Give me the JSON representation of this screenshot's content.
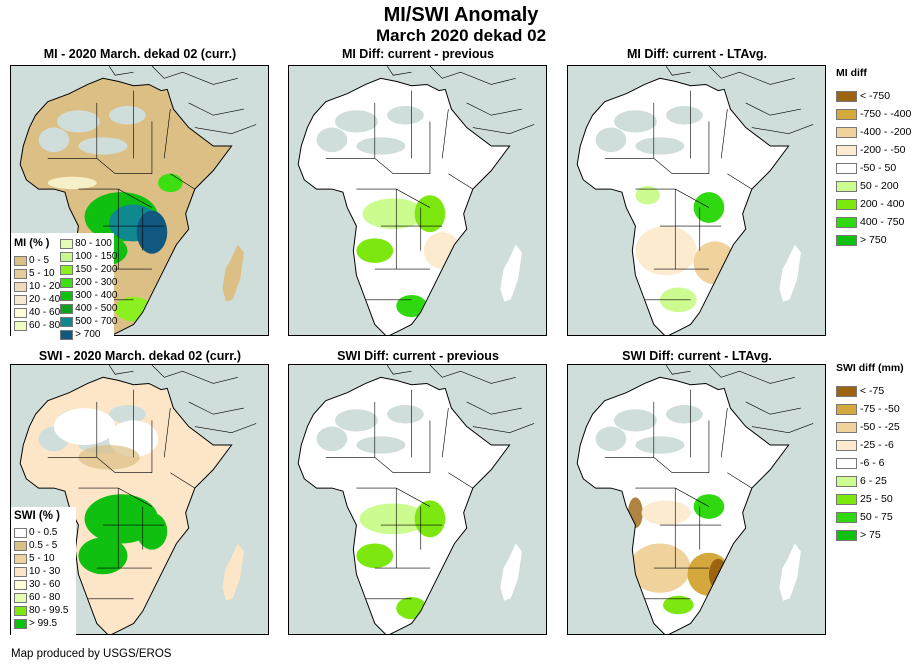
{
  "header": {
    "title": "MI/SWI Anomaly",
    "subtitle": "March 2020 dekad 02"
  },
  "panels": [
    {
      "id": "mi-current",
      "title": "MI - 2020 March. dekad 02 (curr.)"
    },
    {
      "id": "mi-diff-previous",
      "title": "MI Diff: current - previous"
    },
    {
      "id": "mi-diff-ltavg",
      "title": "MI Diff: current - LTAvg."
    },
    {
      "id": "swi-current",
      "title": "SWI - 2020 March. dekad 02 (curr.)"
    },
    {
      "id": "swi-diff-previous",
      "title": "SWI Diff: current - previous"
    },
    {
      "id": "swi-diff-ltavg",
      "title": "SWI Diff: current - LTAvg."
    }
  ],
  "legends": {
    "mi_pct": {
      "title": "MI (% )",
      "col1": [
        {
          "label": "0 - 5",
          "color": "#dcbf85"
        },
        {
          "label": "5 - 10",
          "color": "#e6cc9a"
        },
        {
          "label": "10 - 20",
          "color": "#f0dcbc"
        },
        {
          "label": "20 - 40",
          "color": "#f7e9d4"
        },
        {
          "label": "40 - 60",
          "color": "#fdfdd8"
        },
        {
          "label": "60 - 80",
          "color": "#effcc0"
        }
      ],
      "col2": [
        {
          "label": "80 - 100",
          "color": "#e4fcb8"
        },
        {
          "label": "100 - 150",
          "color": "#c8f890"
        },
        {
          "label": "150 - 200",
          "color": "#8cf020"
        },
        {
          "label": "200 - 300",
          "color": "#3ce010"
        },
        {
          "label": "300 - 400",
          "color": "#10c010"
        },
        {
          "label": "400 - 500",
          "color": "#10a020"
        },
        {
          "label": "500 - 700",
          "color": "#108890"
        },
        {
          "label": "> 700",
          "color": "#105880"
        }
      ]
    },
    "mi_diff": {
      "title": "MI diff",
      "items": [
        {
          "label": "< -750",
          "color": "#9c6410"
        },
        {
          "label": "-750 - -400",
          "color": "#d4a83c"
        },
        {
          "label": "-400 - -200",
          "color": "#f0d29c"
        },
        {
          "label": "-200 - -50",
          "color": "#fdebd0"
        },
        {
          "label": "-50 - 50",
          "color": "#ffffff"
        },
        {
          "label": "50 - 200",
          "color": "#ccfc90"
        },
        {
          "label": "200 - 400",
          "color": "#7ce810"
        },
        {
          "label": "400 - 750",
          "color": "#30d810"
        },
        {
          "label": "> 750",
          "color": "#10c010"
        }
      ]
    },
    "swi_pct": {
      "title": "SWI (% )",
      "items": [
        {
          "label": "0 - 0.5",
          "color": "#ffffff"
        },
        {
          "label": "0.5 - 5",
          "color": "#dcbf85"
        },
        {
          "label": "5 - 10",
          "color": "#f0d29c"
        },
        {
          "label": "10 - 30",
          "color": "#fde6c8"
        },
        {
          "label": "30 - 60",
          "color": "#fdfdd8"
        },
        {
          "label": "60 - 80",
          "color": "#e4fcb0"
        },
        {
          "label": "80 - 99.5",
          "color": "#7ce810"
        },
        {
          "label": "> 99.5",
          "color": "#10c010"
        }
      ]
    },
    "swi_diff": {
      "title": "SWI diff (mm)",
      "items": [
        {
          "label": "< -75",
          "color": "#9c6410"
        },
        {
          "label": "-75 - -50",
          "color": "#d4a83c"
        },
        {
          "label": "-50 - -25",
          "color": "#f0d29c"
        },
        {
          "label": "-25 - -6",
          "color": "#fdebd0"
        },
        {
          "label": "-6 - 6",
          "color": "#ffffff"
        },
        {
          "label": "6 - 25",
          "color": "#ccfc90"
        },
        {
          "label": "25 - 50",
          "color": "#7ce810"
        },
        {
          "label": "50 - 75",
          "color": "#30d810"
        },
        {
          "label": "> 75",
          "color": "#10c010"
        }
      ]
    }
  },
  "colors": {
    "sea": "#cfdeda",
    "desert_nodata": "#cfdeda",
    "border": "#000000"
  },
  "footer": {
    "credit": "Map produced by USGS/EROS"
  }
}
